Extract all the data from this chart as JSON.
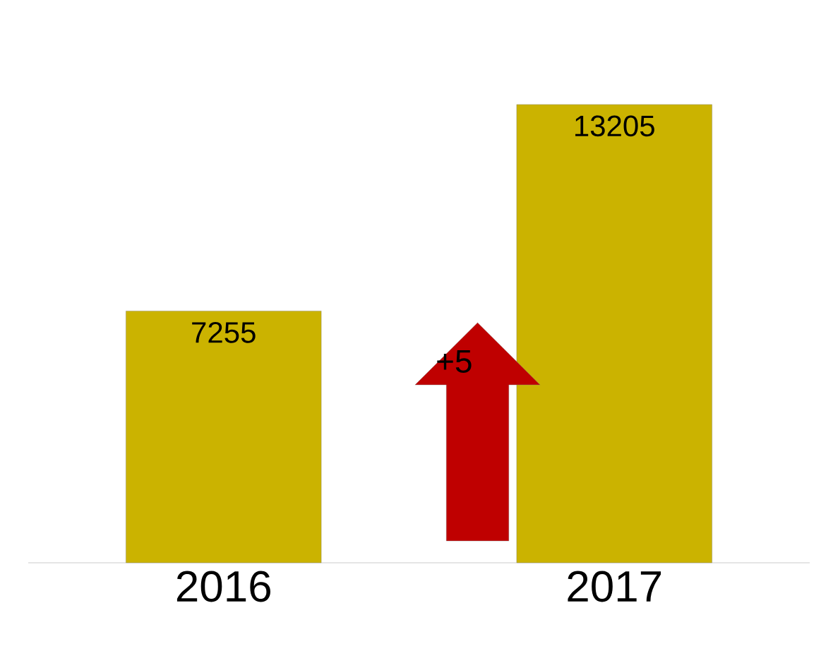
{
  "chart_data": {
    "type": "bar",
    "categories": [
      "2016",
      "2017"
    ],
    "values": [
      7255,
      13205
    ],
    "color": "#cbb300",
    "data_labels": true,
    "annotations": [
      "+5"
    ]
  }
}
